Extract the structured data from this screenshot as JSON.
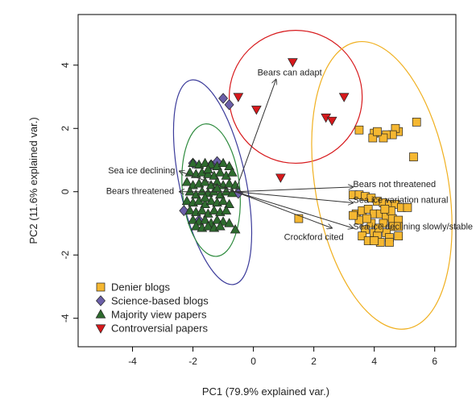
{
  "chart_data": {
    "type": "scatter",
    "title": "",
    "xlabel": "PC1 (79.9% explained var.)",
    "ylabel": "PC2 (11.6% explained var.)",
    "xlim": [
      -5.8,
      6.7
    ],
    "ylim": [
      -4.9,
      5.6
    ],
    "xticks": [
      -4,
      -2,
      0,
      2,
      4,
      6
    ],
    "yticks": [
      -4,
      -2,
      0,
      2,
      4
    ],
    "grid": false,
    "legend": "bottom-left",
    "series": [
      {
        "name": "Denier blogs",
        "marker": "square",
        "color": "#F5B731",
        "points": [
          [
            5.4,
            2.2
          ],
          [
            5.3,
            1.1
          ],
          [
            4.8,
            1.9
          ],
          [
            4.7,
            2.0
          ],
          [
            4.6,
            1.8
          ],
          [
            4.4,
            1.8
          ],
          [
            4.3,
            1.7
          ],
          [
            4.0,
            1.85
          ],
          [
            3.95,
            1.7
          ],
          [
            3.5,
            1.95
          ],
          [
            4.1,
            1.9
          ],
          [
            3.3,
            -0.1
          ],
          [
            3.5,
            -0.1
          ],
          [
            3.7,
            -0.15
          ],
          [
            3.9,
            -0.2
          ],
          [
            4.1,
            -0.3
          ],
          [
            4.3,
            -0.35
          ],
          [
            4.5,
            -0.4
          ],
          [
            4.7,
            -0.4
          ],
          [
            4.9,
            -0.5
          ],
          [
            5.1,
            -0.5
          ],
          [
            3.4,
            -0.7
          ],
          [
            3.6,
            -0.6
          ],
          [
            3.8,
            -0.55
          ],
          [
            4.0,
            -0.7
          ],
          [
            4.2,
            -0.7
          ],
          [
            4.4,
            -0.8
          ],
          [
            4.6,
            -0.85
          ],
          [
            4.8,
            -0.9
          ],
          [
            3.5,
            -0.9
          ],
          [
            3.9,
            -1.0
          ],
          [
            4.3,
            -1.0
          ],
          [
            4.6,
            -1.1
          ],
          [
            3.7,
            -1.2
          ],
          [
            4.0,
            -1.3
          ],
          [
            4.4,
            -1.3
          ],
          [
            4.8,
            -1.1
          ],
          [
            3.6,
            -1.4
          ],
          [
            4.1,
            -1.4
          ],
          [
            4.5,
            -1.45
          ],
          [
            4.8,
            -1.4
          ],
          [
            3.8,
            -1.55
          ],
          [
            4.2,
            -1.6
          ],
          [
            4.5,
            -1.6
          ],
          [
            4.0,
            -1.55
          ],
          [
            3.3,
            -0.75
          ],
          [
            4.55,
            -0.6
          ],
          [
            4.35,
            -0.55
          ],
          [
            3.75,
            -0.85
          ],
          [
            4.15,
            -1.15
          ],
          [
            1.5,
            -0.85
          ]
        ]
      },
      {
        "name": "Science-based blogs",
        "marker": "diamond",
        "color": "#6B5FA8",
        "points": [
          [
            -1.0,
            2.95
          ],
          [
            -0.8,
            2.75
          ],
          [
            -2.3,
            -0.6
          ],
          [
            -0.5,
            -0.05
          ],
          [
            -1.4,
            0.85
          ],
          [
            -1.2,
            0.95
          ],
          [
            -2.0,
            0.9
          ],
          [
            -1.8,
            -0.9
          ]
        ]
      },
      {
        "name": "Majority view papers",
        "marker": "triangle-up",
        "color": "#2E6B2E",
        "points": [
          [
            -2.0,
            0.9
          ],
          [
            -1.8,
            0.85
          ],
          [
            -1.6,
            0.9
          ],
          [
            -1.4,
            0.85
          ],
          [
            -1.2,
            0.8
          ],
          [
            -1.0,
            0.9
          ],
          [
            -0.8,
            0.8
          ],
          [
            -2.1,
            0.6
          ],
          [
            -1.9,
            0.55
          ],
          [
            -1.7,
            0.6
          ],
          [
            -1.5,
            0.55
          ],
          [
            -1.3,
            0.5
          ],
          [
            -1.1,
            0.6
          ],
          [
            -0.9,
            0.5
          ],
          [
            -0.7,
            0.6
          ],
          [
            -2.2,
            0.3
          ],
          [
            -2.0,
            0.2
          ],
          [
            -1.8,
            0.25
          ],
          [
            -1.6,
            0.3
          ],
          [
            -1.4,
            0.2
          ],
          [
            -1.2,
            0.3
          ],
          [
            -1.0,
            0.2
          ],
          [
            -0.8,
            0.25
          ],
          [
            -0.6,
            0.2
          ],
          [
            -2.1,
            0.0
          ],
          [
            -1.9,
            -0.1
          ],
          [
            -1.7,
            0.0
          ],
          [
            -1.5,
            -0.05
          ],
          [
            -1.3,
            0.0
          ],
          [
            -1.1,
            -0.1
          ],
          [
            -0.9,
            0.0
          ],
          [
            -0.7,
            -0.05
          ],
          [
            -2.2,
            -0.3
          ],
          [
            -2.0,
            -0.35
          ],
          [
            -1.8,
            -0.3
          ],
          [
            -1.6,
            -0.4
          ],
          [
            -1.4,
            -0.3
          ],
          [
            -1.2,
            -0.35
          ],
          [
            -1.0,
            -0.3
          ],
          [
            -0.8,
            -0.4
          ],
          [
            -2.1,
            -0.6
          ],
          [
            -1.9,
            -0.65
          ],
          [
            -1.7,
            -0.6
          ],
          [
            -1.5,
            -0.7
          ],
          [
            -1.3,
            -0.6
          ],
          [
            -1.1,
            -0.65
          ],
          [
            -0.9,
            -0.6
          ],
          [
            -2.0,
            -0.9
          ],
          [
            -1.8,
            -0.95
          ],
          [
            -1.6,
            -0.9
          ],
          [
            -1.4,
            -1.0
          ],
          [
            -1.2,
            -0.9
          ],
          [
            -1.0,
            -0.95
          ],
          [
            -0.8,
            -1.0
          ],
          [
            -1.9,
            -1.1
          ],
          [
            -1.7,
            -1.15
          ],
          [
            -1.5,
            -1.1
          ],
          [
            -1.3,
            -1.15
          ],
          [
            -1.1,
            -1.1
          ],
          [
            -0.6,
            -1.2
          ],
          [
            -1.5,
            0.7
          ],
          [
            -1.2,
            0.1
          ],
          [
            -1.6,
            -0.2
          ]
        ]
      },
      {
        "name": "Controversial papers",
        "marker": "triangle-down",
        "color": "#D7191C",
        "points": [
          [
            -0.5,
            3.0
          ],
          [
            0.1,
            2.6
          ],
          [
            1.3,
            4.1
          ],
          [
            2.4,
            2.35
          ],
          [
            2.6,
            2.25
          ],
          [
            3.0,
            3.0
          ],
          [
            0.9,
            0.45
          ]
        ]
      }
    ],
    "ellipses": [
      {
        "series": "Science-based blogs",
        "color": "#3B3B9A",
        "cx": -1.35,
        "cy": 0.3,
        "rx": 1.1,
        "ry": 3.3,
        "angle_deg": -12
      },
      {
        "series": "Majority view papers",
        "color": "#2E8B3E",
        "cx": -1.4,
        "cy": 0.05,
        "rx": 0.95,
        "ry": 2.1,
        "angle_deg": -5
      },
      {
        "series": "Controversial papers",
        "color": "#D7191C",
        "cx": 1.4,
        "cy": 3.0,
        "rx": 2.2,
        "ry": 2.1,
        "angle_deg": 0
      },
      {
        "series": "Denier blogs",
        "color": "#F0B020",
        "cx": 4.25,
        "cy": 0.2,
        "rx": 2.2,
        "ry": 4.6,
        "angle_deg": -10
      }
    ],
    "arrows": [
      {
        "label": "Bears can adapt",
        "x": 0.75,
        "y": 3.55,
        "label_x": 1.2,
        "label_y": 3.75,
        "anchor": "middle"
      },
      {
        "label": "Sea ice declining",
        "x": -2.45,
        "y": 0.65,
        "label_x": -3.7,
        "label_y": 0.65,
        "anchor": "middle"
      },
      {
        "label": "Bears threatened",
        "x": -2.45,
        "y": 0.0,
        "label_x": -3.75,
        "label_y": 0.0,
        "anchor": "middle"
      },
      {
        "label": "Bears not threatened",
        "x": 3.3,
        "y": 0.15,
        "label_x": 3.3,
        "label_y": 0.22,
        "anchor": "start"
      },
      {
        "label": "Sea ice variation natural",
        "x": 3.3,
        "y": -0.35,
        "label_x": 3.3,
        "label_y": -0.28,
        "anchor": "start"
      },
      {
        "label": "Sea ice declining slowly/stable",
        "x": 3.3,
        "y": -1.15,
        "label_x": 3.3,
        "label_y": -1.12,
        "anchor": "start"
      },
      {
        "label": "Crockford cited",
        "x": 2.6,
        "y": -1.15,
        "label_x": 2.0,
        "label_y": -1.45,
        "anchor": "middle"
      }
    ]
  }
}
